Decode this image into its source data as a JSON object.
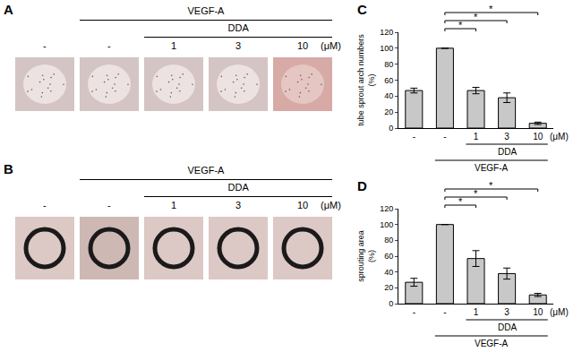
{
  "panels": [
    {
      "label": "A",
      "columns": [
        "-",
        "-",
        "1",
        "3",
        "10"
      ],
      "unit": "(μM)",
      "groups": [
        {
          "label": "VEGF-A",
          "from": 1,
          "to": 4
        },
        {
          "label": "DDA",
          "from": 2,
          "to": 4
        }
      ]
    },
    {
      "label": "B",
      "columns": [
        "-",
        "-",
        "1",
        "3",
        "10"
      ],
      "unit": "(μM)",
      "groups": [
        {
          "label": "VEGF-A",
          "from": 1,
          "to": 4
        },
        {
          "label": "DDA",
          "from": 2,
          "to": 4
        }
      ]
    }
  ],
  "chart_data": [
    {
      "panel": "C",
      "type": "bar",
      "ylabel": "tube sprout arch numbers (%)",
      "categories": [
        "-",
        "-",
        "1",
        "3",
        "10"
      ],
      "values": [
        47,
        100,
        47,
        38,
        6
      ],
      "error": [
        3,
        0,
        4,
        6,
        1.5
      ],
      "color": "#c8c8c8",
      "ylim": [
        0,
        120
      ],
      "yticks": [
        0,
        20,
        40,
        60,
        80,
        100,
        120
      ],
      "grid": false,
      "unit": "(μM)",
      "groups": [
        {
          "label": "DDA",
          "from": 2,
          "to": 4
        },
        {
          "label": "VEGF-A",
          "from": 1,
          "to": 4
        }
      ],
      "significance": [
        {
          "from": 1,
          "to": 2,
          "label": "*"
        },
        {
          "from": 1,
          "to": 3,
          "label": "*"
        },
        {
          "from": 1,
          "to": 4,
          "label": "*"
        }
      ]
    },
    {
      "panel": "D",
      "type": "bar",
      "ylabel": "sprouting area (%)",
      "categories": [
        "-",
        "-",
        "1",
        "3",
        "10"
      ],
      "values": [
        27,
        100,
        57,
        38,
        11
      ],
      "error": [
        5,
        0,
        10,
        7,
        2
      ],
      "color": "#c8c8c8",
      "ylim": [
        0,
        120
      ],
      "yticks": [
        0,
        20,
        40,
        60,
        80,
        100,
        120
      ],
      "grid": false,
      "unit": "(μM)",
      "groups": [
        {
          "label": "DDA",
          "from": 2,
          "to": 4
        },
        {
          "label": "VEGF-A",
          "from": 1,
          "to": 4
        }
      ],
      "significance": [
        {
          "from": 1,
          "to": 2,
          "label": "*"
        },
        {
          "from": 1,
          "to": 3,
          "label": "*"
        },
        {
          "from": 1,
          "to": 4,
          "label": "*"
        }
      ]
    }
  ]
}
